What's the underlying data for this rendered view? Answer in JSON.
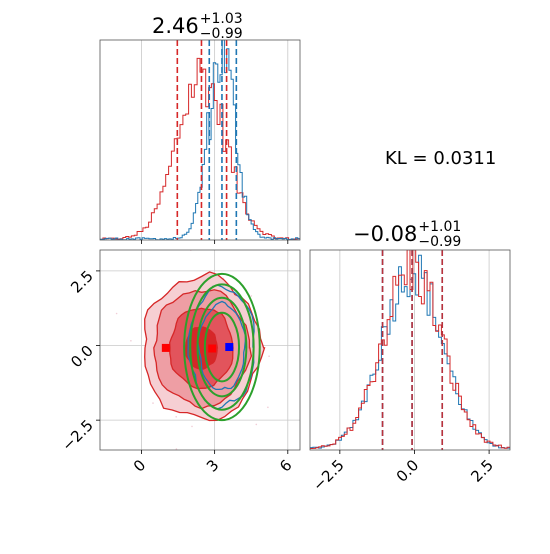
{
  "kl_text": "KL = 0.0311",
  "colors": {
    "red": "#d62728",
    "blue": "#1f77b4",
    "green": "#2ca02c",
    "grid": "#c8c8c8"
  },
  "panels": {
    "top": {
      "title": {
        "main": "2.46",
        "plus": "+1.03",
        "minus": "−0.99"
      },
      "xlim": [
        -1.7,
        6.5
      ],
      "red_quantiles": [
        1.47,
        2.46,
        3.49
      ],
      "blue_quantiles": [
        2.78,
        3.3,
        3.89
      ]
    },
    "right": {
      "title": {
        "main": "−0.08",
        "plus": "+1.01",
        "minus": "−0.99"
      },
      "xlim": [
        -3.5,
        3.2
      ],
      "xticks": [
        "−2.5",
        "0.0",
        "2.5"
      ],
      "red_quantiles": [
        -1.07,
        -0.08,
        0.93
      ],
      "blue_quantiles": [
        -1.07,
        -0.08,
        0.93
      ]
    },
    "joint": {
      "xlim": [
        -1.7,
        6.5
      ],
      "ylim": [
        -3.5,
        3.2
      ],
      "xticks": [
        "0",
        "3",
        "6"
      ],
      "yticks": [
        "2.5",
        "0.0",
        "−2.5"
      ],
      "red_markers": [
        [
          1.0,
          -0.08
        ],
        [
          2.9,
          -0.1
        ]
      ],
      "blue_marker": [
        3.6,
        -0.05
      ]
    }
  },
  "chart_data": {
    "type": "corner",
    "parameters": [
      "x",
      "y"
    ],
    "x": {
      "median": 2.46,
      "upper_error": 1.03,
      "lower_error": -0.99,
      "range": [
        -1.7,
        6.5
      ]
    },
    "y": {
      "median": -0.08,
      "upper_error": 1.01,
      "lower_error": -0.99,
      "range": [
        -3.5,
        3.2
      ]
    },
    "annotation": "KL = 0.0311",
    "distributions": [
      {
        "color": "red",
        "x_quantiles": [
          1.47,
          2.46,
          3.49
        ],
        "y_quantiles": [
          -1.07,
          -0.08,
          0.93
        ]
      },
      {
        "color": "blue",
        "x_quantiles": [
          2.78,
          3.3,
          3.89
        ],
        "y_quantiles": [
          -1.07,
          -0.08,
          0.93
        ]
      },
      {
        "color": "green",
        "center": [
          3.3,
          -0.05
        ]
      }
    ]
  }
}
